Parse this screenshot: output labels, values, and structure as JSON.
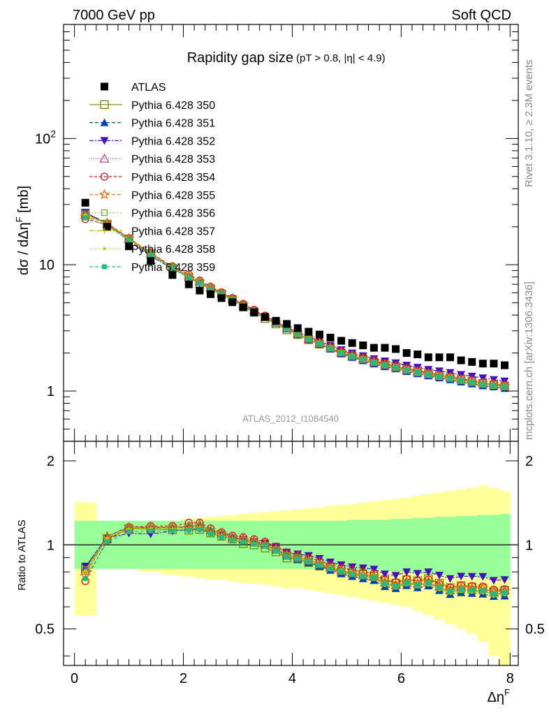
{
  "header": {
    "left": "7000 GeV pp",
    "right": "Soft QCD"
  },
  "side_labels": {
    "rivet": "Rivet 3.1.10, ≥ 2.3M events",
    "mcplots": "mcplots.cern.ch [arXiv:1306.3436]"
  },
  "chart_data": {
    "type": "scatter",
    "title": "Rapidity gap size",
    "title_cuts": "(pT > 0.8, |η| < 4.9)",
    "analysis_label": "ATLAS_2012_I1084540",
    "xlabel": "Δη",
    "xlabel_sup": "F",
    "ylabel": "dσ / dΔη",
    "ylabel_sup": "F",
    "ylabel_unit": "[mb]",
    "ratio_ylabel": "Ratio to ATLAS",
    "xlim": [
      -0.2,
      8.15
    ],
    "ylim": [
      0.4,
      800
    ],
    "yscale": "log",
    "ratio_ylim": [
      0.37,
      2.35
    ],
    "ratio_yscale": "log",
    "x_ticks": [
      "0",
      "2",
      "4",
      "6",
      "8"
    ],
    "y_ticks": [
      "1",
      "10",
      "10^2"
    ],
    "ratio_y_ticks": [
      "0.5",
      "1",
      "2"
    ],
    "legend_position": "top-left",
    "x": [
      0.2,
      0.6,
      1.0,
      1.4,
      1.8,
      2.1,
      2.3,
      2.5,
      2.7,
      2.9,
      3.1,
      3.3,
      3.5,
      3.7,
      3.9,
      4.1,
      4.3,
      4.5,
      4.7,
      4.9,
      5.1,
      5.3,
      5.5,
      5.7,
      5.9,
      6.1,
      6.3,
      6.5,
      6.7,
      6.9,
      7.1,
      7.3,
      7.5,
      7.7,
      7.9
    ],
    "data": {
      "name": "ATLAS",
      "values": [
        31.0,
        20.0,
        14.0,
        10.7,
        8.3,
        7.0,
        6.25,
        5.85,
        5.45,
        5.05,
        4.6,
        4.2,
        3.85,
        3.6,
        3.4,
        3.15,
        2.95,
        2.8,
        2.65,
        2.5,
        2.4,
        2.3,
        2.2,
        2.2,
        2.15,
        2.0,
        1.95,
        1.85,
        1.85,
        1.85,
        1.75,
        1.7,
        1.65,
        1.65,
        1.6
      ]
    },
    "uncertainty_bands": {
      "inner_upper": [
        1.22,
        1.22,
        1.22,
        1.22,
        1.22,
        1.22,
        1.22,
        1.22,
        1.22,
        1.22,
        1.22,
        1.22,
        1.22,
        1.22,
        1.22,
        1.22,
        1.22,
        1.22,
        1.22,
        1.22,
        1.23,
        1.23,
        1.23,
        1.23,
        1.24,
        1.24,
        1.25,
        1.25,
        1.26,
        1.26,
        1.27,
        1.27,
        1.28,
        1.28,
        1.29
      ],
      "inner_lower": [
        0.82,
        0.82,
        0.82,
        0.82,
        0.82,
        0.82,
        0.82,
        0.82,
        0.82,
        0.82,
        0.82,
        0.82,
        0.82,
        0.82,
        0.82,
        0.82,
        0.82,
        0.82,
        0.82,
        0.82,
        0.81,
        0.81,
        0.81,
        0.81,
        0.8,
        0.8,
        0.79,
        0.79,
        0.78,
        0.78,
        0.77,
        0.77,
        0.76,
        0.76,
        0.75
      ],
      "outer_upper": [
        1.42,
        1.15,
        1.17,
        1.2,
        1.22,
        1.24,
        1.25,
        1.26,
        1.27,
        1.28,
        1.29,
        1.3,
        1.31,
        1.32,
        1.33,
        1.34,
        1.35,
        1.36,
        1.38,
        1.39,
        1.4,
        1.42,
        1.43,
        1.45,
        1.46,
        1.48,
        1.5,
        1.52,
        1.54,
        1.56,
        1.58,
        1.6,
        1.63,
        1.6,
        1.56
      ],
      "outer_lower": [
        0.56,
        0.83,
        0.82,
        0.8,
        0.78,
        0.77,
        0.76,
        0.75,
        0.75,
        0.74,
        0.73,
        0.73,
        0.72,
        0.71,
        0.7,
        0.7,
        0.69,
        0.68,
        0.67,
        0.66,
        0.65,
        0.64,
        0.63,
        0.62,
        0.61,
        0.6,
        0.58,
        0.56,
        0.54,
        0.52,
        0.5,
        0.48,
        0.45,
        0.4,
        0.36
      ]
    },
    "series": [
      {
        "name": "Pythia 6.428 350",
        "color": "#808000",
        "marker": "square-open",
        "dash": "",
        "values": [
          25.5,
          21.0,
          16.0,
          12.2,
          9.4,
          7.9,
          7.1,
          6.45,
          5.85,
          5.3,
          4.65,
          4.2,
          3.75,
          3.4,
          3.05,
          2.8,
          2.55,
          2.35,
          2.2,
          2.0,
          1.9,
          1.8,
          1.7,
          1.65,
          1.57,
          1.5,
          1.45,
          1.4,
          1.35,
          1.3,
          1.25,
          1.2,
          1.15,
          1.12,
          1.1
        ]
      },
      {
        "name": "Pythia 6.428 351",
        "color": "#0044aa",
        "marker": "triangle-up",
        "dash": "5,3",
        "values": [
          25.8,
          21.4,
          16.3,
          12.3,
          9.6,
          8.1,
          7.3,
          6.6,
          6.0,
          5.4,
          4.8,
          4.3,
          3.85,
          3.45,
          3.1,
          2.8,
          2.55,
          2.35,
          2.15,
          1.97,
          1.85,
          1.74,
          1.64,
          1.56,
          1.5,
          1.43,
          1.37,
          1.32,
          1.27,
          1.23,
          1.18,
          1.14,
          1.1,
          1.08,
          1.05
        ]
      },
      {
        "name": "Pythia 6.428 352",
        "color": "#4411bb",
        "marker": "triangle-down",
        "dash": "6,2,2,2",
        "values": [
          26.0,
          21.2,
          15.4,
          11.7,
          9.3,
          7.95,
          7.15,
          6.5,
          5.95,
          5.35,
          4.8,
          4.3,
          3.9,
          3.55,
          3.2,
          2.92,
          2.7,
          2.5,
          2.3,
          2.12,
          2.0,
          1.9,
          1.8,
          1.73,
          1.67,
          1.6,
          1.54,
          1.48,
          1.44,
          1.4,
          1.35,
          1.31,
          1.27,
          1.23,
          1.2
        ]
      },
      {
        "name": "Pythia 6.428 353",
        "color": "#bb3388",
        "marker": "triangle-up-open",
        "dash": "1,2",
        "values": [
          25.0,
          21.0,
          16.0,
          12.4,
          9.6,
          8.2,
          7.4,
          6.6,
          6.0,
          5.4,
          4.85,
          4.35,
          3.9,
          3.5,
          3.15,
          2.85,
          2.6,
          2.4,
          2.2,
          2.02,
          1.9,
          1.79,
          1.69,
          1.61,
          1.54,
          1.47,
          1.41,
          1.36,
          1.31,
          1.27,
          1.23,
          1.19,
          1.15,
          1.12,
          1.1
        ]
      },
      {
        "name": "Pythia 6.428 354",
        "color": "#dd1111",
        "marker": "circle-open",
        "dash": "4,3",
        "values": [
          23.0,
          20.8,
          16.2,
          12.5,
          9.7,
          8.4,
          7.5,
          6.7,
          6.05,
          5.45,
          4.9,
          4.4,
          3.95,
          3.55,
          3.2,
          2.9,
          2.65,
          2.45,
          2.25,
          2.07,
          1.95,
          1.84,
          1.74,
          1.65,
          1.58,
          1.51,
          1.45,
          1.39,
          1.34,
          1.3,
          1.25,
          1.21,
          1.17,
          1.14,
          1.11
        ]
      },
      {
        "name": "Pythia 6.428 355",
        "color": "#ee6600",
        "marker": "star-open",
        "dash": "5,3",
        "values": [
          24.0,
          21.5,
          16.2,
          12.4,
          9.6,
          8.15,
          7.35,
          6.6,
          6.0,
          5.4,
          4.8,
          4.3,
          3.85,
          3.47,
          3.13,
          2.84,
          2.6,
          2.4,
          2.2,
          2.03,
          1.9,
          1.8,
          1.7,
          1.62,
          1.55,
          1.48,
          1.42,
          1.37,
          1.32,
          1.28,
          1.23,
          1.19,
          1.15,
          1.12,
          1.09
        ]
      },
      {
        "name": "Pythia 6.428 356",
        "color": "#66aa33",
        "marker": "square-small-open",
        "dash": "1,3",
        "values": [
          25.3,
          21.3,
          16.1,
          12.3,
          9.55,
          8.1,
          7.3,
          6.55,
          5.95,
          5.35,
          4.78,
          4.28,
          3.84,
          3.46,
          3.12,
          2.83,
          2.58,
          2.38,
          2.19,
          2.01,
          1.89,
          1.78,
          1.68,
          1.6,
          1.53,
          1.46,
          1.4,
          1.35,
          1.3,
          1.26,
          1.21,
          1.17,
          1.13,
          1.1,
          1.08
        ]
      },
      {
        "name": "Pythia 6.428 357",
        "color": "#ccaa00",
        "marker": "cross-small",
        "dash": "6,2,1,2",
        "values": [
          24.8,
          21.2,
          16.0,
          12.3,
          9.5,
          8.05,
          7.25,
          6.5,
          5.9,
          5.3,
          4.75,
          4.25,
          3.82,
          3.44,
          3.1,
          2.81,
          2.57,
          2.37,
          2.18,
          2.0,
          1.88,
          1.77,
          1.67,
          1.59,
          1.52,
          1.45,
          1.39,
          1.34,
          1.29,
          1.25,
          1.2,
          1.16,
          1.12,
          1.09,
          1.07
        ]
      },
      {
        "name": "Pythia 6.428 358",
        "color": "#bbcc00",
        "marker": "dot-small",
        "dash": "1,2",
        "values": [
          25.1,
          21.1,
          15.9,
          12.2,
          9.45,
          8.0,
          7.2,
          6.48,
          5.88,
          5.28,
          4.73,
          4.24,
          3.81,
          3.43,
          3.09,
          2.8,
          2.56,
          2.36,
          2.17,
          1.99,
          1.87,
          1.76,
          1.66,
          1.58,
          1.51,
          1.44,
          1.38,
          1.33,
          1.28,
          1.24,
          1.19,
          1.15,
          1.11,
          1.08,
          1.06
        ]
      },
      {
        "name": "Pythia 6.428 359",
        "color": "#22bb88",
        "marker": "square-small",
        "dash": "5,3",
        "values": [
          23.5,
          20.5,
          15.6,
          12.0,
          9.3,
          7.9,
          7.1,
          6.4,
          5.8,
          5.25,
          4.7,
          4.22,
          3.8,
          3.42,
          3.08,
          2.8,
          2.56,
          2.36,
          2.17,
          2.0,
          1.88,
          1.77,
          1.68,
          1.6,
          1.53,
          1.46,
          1.4,
          1.35,
          1.3,
          1.26,
          1.21,
          1.17,
          1.13,
          1.1,
          1.08
        ]
      }
    ]
  }
}
